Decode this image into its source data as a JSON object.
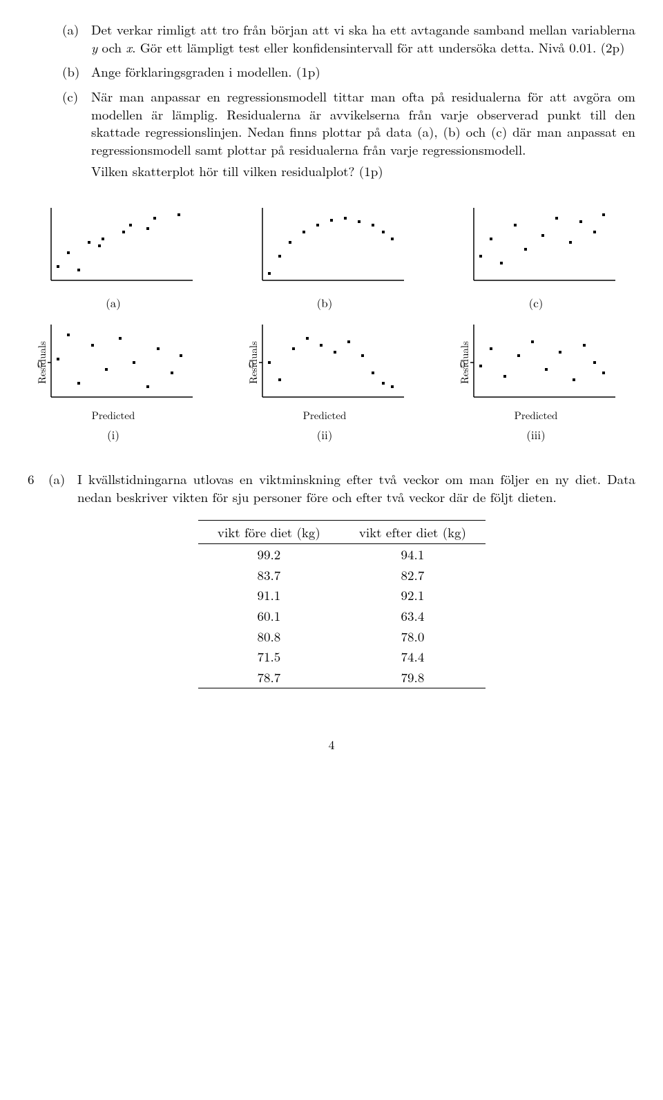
{
  "q5": {
    "a": {
      "label": "(a)",
      "text": "Det verkar rimligt att tro från början att vi ska ha ett avtagande samband mellan variablerna ",
      "var1": "y",
      "mid": " och ",
      "var2": "x",
      "rest": ". Gör ett lämpligt test eller konfidensintervall för att undersöka detta. Nivå 0.01. (2p)"
    },
    "b": {
      "label": "(b)",
      "text": "Ange förklaringsgraden i modellen. (1p)"
    },
    "c": {
      "label": "(c)",
      "text1": "När man anpassar en regressionsmodell tittar man ofta på residualerna för att avgöra om modellen är lämplig. Residualerna är avvikelserna från varje observerad punkt till den skattade regressionslinjen. Nedan finns plottar på data (a), (b) och (c) där man anpassat en regressionsmodell samt plottar på residualerna från varje regressionsmodell.",
      "text2": "Vilken skatterplot hör till vilken residualplot? (1p)"
    }
  },
  "plots": {
    "axis_color": "#000000",
    "marker_color": "#000000",
    "marker_size": 4,
    "top": [
      {
        "caption": "(a)",
        "points": [
          [
            40,
            95
          ],
          [
            55,
            75
          ],
          [
            70,
            100
          ],
          [
            85,
            60
          ],
          [
            100,
            65
          ],
          [
            105,
            55
          ],
          [
            135,
            45
          ],
          [
            145,
            35
          ],
          [
            170,
            40
          ],
          [
            180,
            25
          ],
          [
            215,
            20
          ]
        ]
      },
      {
        "caption": "(b)",
        "points": [
          [
            40,
            105
          ],
          [
            55,
            80
          ],
          [
            70,
            60
          ],
          [
            90,
            45
          ],
          [
            110,
            35
          ],
          [
            130,
            28
          ],
          [
            150,
            25
          ],
          [
            170,
            30
          ],
          [
            190,
            35
          ],
          [
            205,
            45
          ],
          [
            218,
            55
          ]
        ]
      },
      {
        "caption": "(c)",
        "points": [
          [
            40,
            80
          ],
          [
            55,
            55
          ],
          [
            70,
            90
          ],
          [
            90,
            35
          ],
          [
            105,
            70
          ],
          [
            130,
            50
          ],
          [
            150,
            25
          ],
          [
            170,
            60
          ],
          [
            185,
            30
          ],
          [
            205,
            45
          ],
          [
            218,
            20
          ]
        ]
      }
    ],
    "bottom": [
      {
        "caption": "(i)",
        "ylabel": "Residuals",
        "ytick": "0",
        "xlabel": "Predicted",
        "points": [
          [
            40,
            60
          ],
          [
            55,
            25
          ],
          [
            70,
            95
          ],
          [
            90,
            40
          ],
          [
            110,
            75
          ],
          [
            130,
            30
          ],
          [
            150,
            65
          ],
          [
            170,
            100
          ],
          [
            185,
            45
          ],
          [
            205,
            80
          ],
          [
            218,
            55
          ]
        ]
      },
      {
        "caption": "(ii)",
        "ylabel": "Residuals",
        "ytick": "0",
        "xlabel": "Predicted",
        "points": [
          [
            40,
            65
          ],
          [
            55,
            90
          ],
          [
            75,
            45
          ],
          [
            95,
            30
          ],
          [
            115,
            40
          ],
          [
            135,
            50
          ],
          [
            155,
            35
          ],
          [
            175,
            55
          ],
          [
            190,
            80
          ],
          [
            205,
            95
          ],
          [
            218,
            100
          ]
        ]
      },
      {
        "caption": "(iii)",
        "ylabel": "Residuals",
        "ytick": "0",
        "xlabel": "Predicted",
        "points": [
          [
            40,
            70
          ],
          [
            55,
            45
          ],
          [
            75,
            85
          ],
          [
            95,
            55
          ],
          [
            115,
            35
          ],
          [
            135,
            75
          ],
          [
            155,
            50
          ],
          [
            175,
            90
          ],
          [
            190,
            40
          ],
          [
            205,
            65
          ],
          [
            218,
            80
          ]
        ]
      }
    ]
  },
  "q6": {
    "num": "6",
    "a": {
      "label": "(a)",
      "text": "I kvällstidningarna utlovas en viktminskning efter två veckor om man följer en ny diet. Data nedan beskriver vikten för sju personer före och efter två veckor där de följt dieten."
    }
  },
  "table": {
    "columns": [
      "vikt före diet (kg)",
      "vikt efter diet (kg)"
    ],
    "rows": [
      [
        "99.2",
        "94.1"
      ],
      [
        "83.7",
        "82.7"
      ],
      [
        "91.1",
        "92.1"
      ],
      [
        "60.1",
        "63.4"
      ],
      [
        "80.8",
        "78.0"
      ],
      [
        "71.5",
        "74.4"
      ],
      [
        "78.7",
        "79.8"
      ]
    ]
  },
  "page_number": "4"
}
